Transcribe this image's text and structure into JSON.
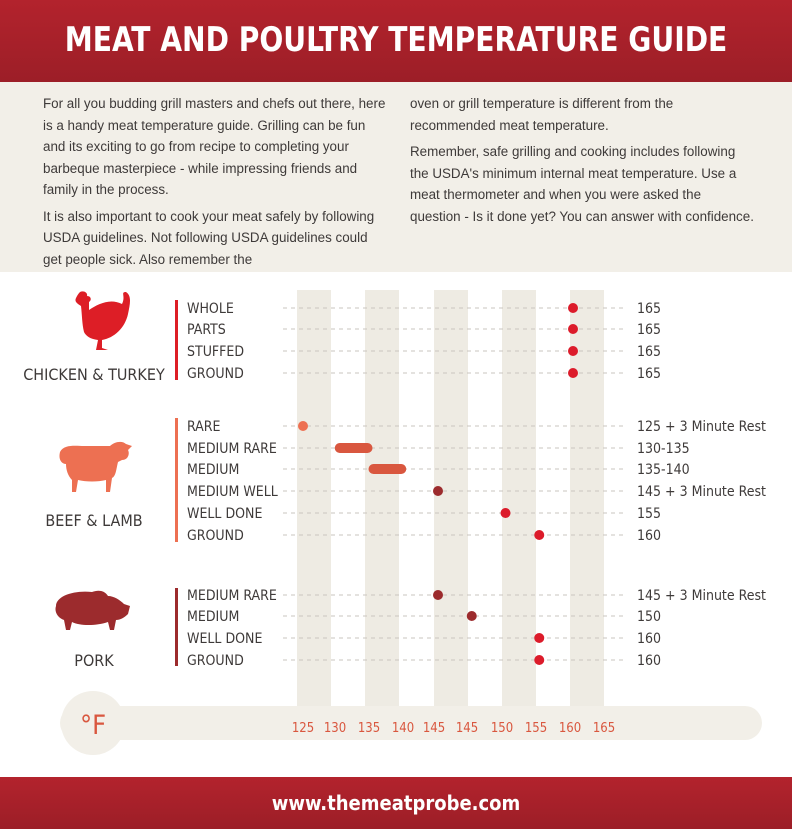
{
  "title": "MEAT AND POULTRY TEMPERATURE GUIDE",
  "intro": {
    "left": [
      "For all you budding grill masters and chefs out there, here is a handy meat temperature guide. Grilling can be fun and its exciting to go from recipe to completing your barbeque masterpiece - while impressing friends and family in the process.",
      "It is also important to cook your meat safely by following USDA guidelines. Not following USDA guidelines could get people sick. Also remember the"
    ],
    "right": [
      "oven or grill temperature is different from the recommended meat temperature.",
      "Remember, safe grilling and cooking includes following the USDA's minimum internal meat temperature. Use a meat thermometer and when you were asked the question - Is it done yet? You can answer with confidence."
    ]
  },
  "colors": {
    "brand_red": "#a8212b",
    "chicken": "#dd1e26",
    "beef": "#ed7052",
    "beef_bar": "#d9573f",
    "pork": "#9c2b2d",
    "dot_red": "#dc1b2a",
    "column": "#eeebe3",
    "text": "#3e3a39"
  },
  "chart_data": {
    "type": "scatter",
    "unit": "°F",
    "x_ticks": [
      "125",
      "130",
      "135",
      "140",
      "145",
      "145",
      "150",
      "155",
      "160",
      "165"
    ],
    "groups": [
      {
        "name": "CHICKEN & TURKEY",
        "icon": "chicken-icon",
        "items": [
          {
            "label": "WHOLE",
            "value": 165,
            "text": "165"
          },
          {
            "label": "PARTS",
            "value": 165,
            "text": "165"
          },
          {
            "label": "STUFFED",
            "value": 165,
            "text": "165"
          },
          {
            "label": "GROUND",
            "value": 165,
            "text": "165"
          }
        ]
      },
      {
        "name": "BEEF & LAMB",
        "icon": "cow-icon",
        "items": [
          {
            "label": "RARE",
            "value": 125,
            "text": "125 + 3 Minute Rest"
          },
          {
            "label": "MEDIUM RARE",
            "range": [
              130,
              135
            ],
            "text": "130-135"
          },
          {
            "label": "MEDIUM",
            "range": [
              135,
              140
            ],
            "text": "135-140"
          },
          {
            "label": "MEDIUM WELL",
            "value": 145,
            "text": "145 + 3 Minute Rest"
          },
          {
            "label": "WELL DONE",
            "value": 155,
            "text": "155"
          },
          {
            "label": "GROUND",
            "value": 160,
            "text": "160"
          }
        ]
      },
      {
        "name": "PORK",
        "icon": "pig-icon",
        "items": [
          {
            "label": "MEDIUM RARE",
            "value": 145,
            "text": "145 + 3 Minute Rest"
          },
          {
            "label": "MEDIUM",
            "value": 150,
            "text": "150"
          },
          {
            "label": "WELL DONE",
            "value": 160,
            "text": "160"
          },
          {
            "label": "GROUND",
            "value": 160,
            "text": "160"
          }
        ]
      }
    ]
  },
  "footer": "www.themeatprobe.com"
}
